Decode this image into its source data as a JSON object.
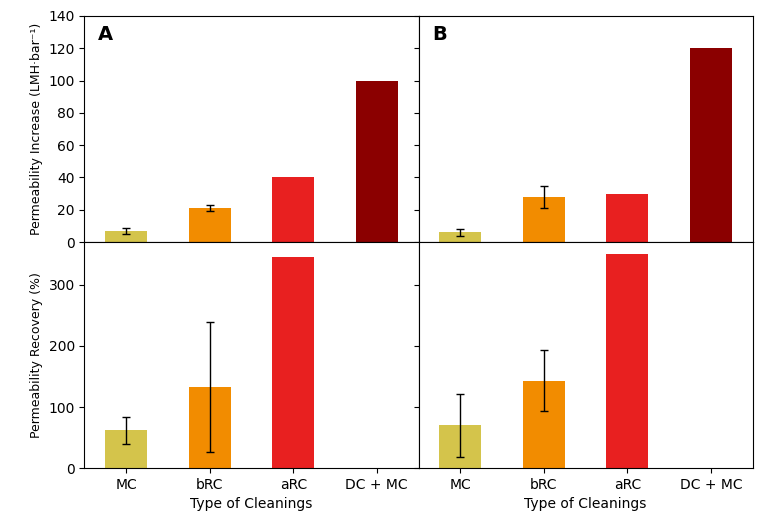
{
  "chart_data": [
    {
      "type": "bar",
      "categories": [
        "MC",
        "bRC",
        "aRC",
        "DC + MC"
      ],
      "values": [
        7,
        21,
        40,
        100
      ],
      "errors": [
        2,
        2,
        0,
        0
      ],
      "colors": [
        "#D4C44B",
        "#F28C00",
        "#E82020",
        "#8B0000"
      ],
      "ylabel": "Permeability Increase (LMH·bar⁻¹)",
      "ylim": [
        0,
        140
      ],
      "yticks": [
        0,
        20,
        40,
        60,
        80,
        100,
        120,
        140
      ],
      "tick_labels": "y",
      "annotations": [
        "A"
      ]
    },
    {
      "type": "bar",
      "categories": [
        "MC",
        "bRC",
        "aRC",
        "DC + MC"
      ],
      "values": [
        6,
        28,
        30,
        120
      ],
      "errors": [
        2,
        7,
        0,
        0
      ],
      "colors": [
        "#D4C44B",
        "#F28C00",
        "#E82020",
        "#8B0000"
      ],
      "ylim": [
        0,
        140
      ],
      "yticks": [
        0,
        20,
        40,
        60,
        80,
        100,
        120,
        140
      ],
      "tick_labels": false,
      "annotations": [
        "B"
      ]
    },
    {
      "type": "bar",
      "categories": [
        "MC",
        "bRC",
        "aRC",
        "DC + MC"
      ],
      "values": [
        62,
        133,
        345,
        null
      ],
      "errors": [
        22,
        107,
        0,
        0
      ],
      "colors": [
        "#D4C44B",
        "#F28C00",
        "#E82020",
        "#8B0000"
      ],
      "xlabel": "Type of Cleanings",
      "ylabel": "Permeability Recovery (%)",
      "ylim": [
        0,
        370
      ],
      "yticks": [
        0,
        100,
        200,
        300
      ]
    },
    {
      "type": "bar",
      "categories": [
        "MC",
        "bRC",
        "aRC",
        "DC + MC"
      ],
      "values": [
        70,
        143,
        350,
        null
      ],
      "errors": [
        52,
        50,
        0,
        0
      ],
      "colors": [
        "#D4C44B",
        "#F28C00",
        "#E82020",
        "#8B0000"
      ],
      "xlabel": "Type of Cleanings",
      "ylim": [
        0,
        370
      ],
      "yticks": [
        0,
        100,
        200,
        300
      ],
      "tick_labels": "x"
    }
  ]
}
